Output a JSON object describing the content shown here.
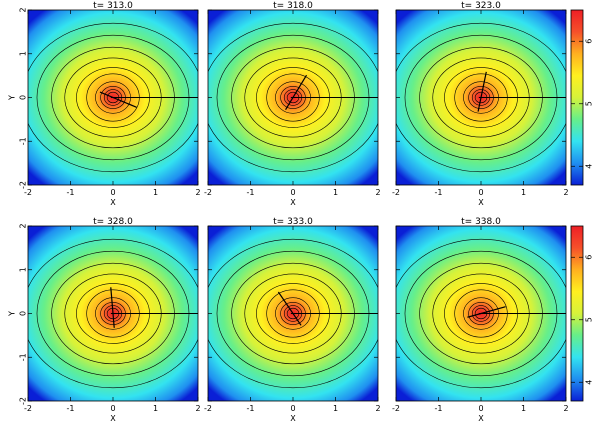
{
  "chart_data": {
    "type": "heatmap",
    "xlabel": "X",
    "ylabel": "Y",
    "xlim": [
      -2,
      2
    ],
    "ylim": [
      -2,
      2
    ],
    "x_ticks": [
      "-2",
      "-1",
      "0",
      "1",
      "2"
    ],
    "y_ticks": [
      "-2",
      "-1",
      "0",
      "1",
      "2"
    ],
    "colorbar": {
      "range": [
        3.7,
        6.5
      ],
      "ticks": [
        "4",
        "5",
        "6"
      ]
    },
    "colormap": [
      "#0a1fd6",
      "#1f8ff0",
      "#33e3f0",
      "#66ef8a",
      "#d6f23a",
      "#fff020",
      "#ffb020",
      "#f6502a",
      "#ee1f26"
    ],
    "contour_color": "#000000",
    "panels": [
      {
        "title": "t=  313.0",
        "vector_angle_deg": -22
      },
      {
        "title": "t=  318.0",
        "vector_angle_deg": 58
      },
      {
        "title": "t=  323.0",
        "vector_angle_deg": 78
      },
      {
        "title": "t=  328.0",
        "vector_angle_deg": 95
      },
      {
        "title": "t=  333.0",
        "vector_angle_deg": 125
      },
      {
        "title": "t=  338.0",
        "vector_angle_deg": 15
      }
    ]
  }
}
